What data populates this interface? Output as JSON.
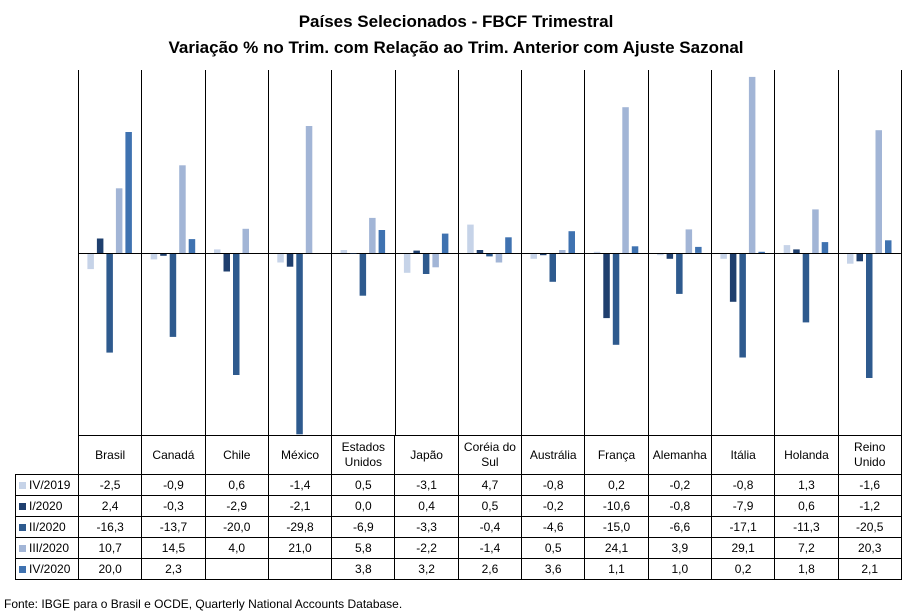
{
  "chart_data": {
    "type": "bar",
    "title": "Países Selecionados - FBCF Trimestral",
    "subtitle": "Variação % no Trim. com Relação ao Trim. Anterior com Ajuste Sazonal",
    "categories": [
      "Brasil",
      "Canadá",
      "Chile",
      "México",
      "Estados Unidos",
      "Japão",
      "Coréia do Sul",
      "Austrália",
      "França",
      "Alemanha",
      "Itália",
      "Holanda",
      "Reino Unido"
    ],
    "series": [
      {
        "name": "IV/2019",
        "color": "#c6d3e8",
        "values": [
          -2.5,
          -0.9,
          0.6,
          -1.4,
          0.5,
          -3.1,
          4.7,
          -0.8,
          0.2,
          -0.2,
          -0.8,
          1.3,
          -1.6
        ],
        "labels": [
          "-2,5",
          "-0,9",
          "0,6",
          "-1,4",
          "0,5",
          "-3,1",
          "4,7",
          "-0,8",
          "0,2",
          "-0,2",
          "-0,8",
          "1,3",
          "-1,6"
        ]
      },
      {
        "name": "I/2020",
        "color": "#1f3f6e",
        "values": [
          2.4,
          -0.3,
          -2.9,
          -2.1,
          0.0,
          0.4,
          0.5,
          -0.2,
          -10.6,
          -0.8,
          -7.9,
          0.6,
          -1.2
        ],
        "labels": [
          "2,4",
          "-0,3",
          "-2,9",
          "-2,1",
          "0,0",
          "0,4",
          "0,5",
          "-0,2",
          "-10,6",
          "-0,8",
          "-7,9",
          "0,6",
          "-1,2"
        ]
      },
      {
        "name": "II/2020",
        "color": "#2e5a8e",
        "values": [
          -16.3,
          -13.7,
          -20.0,
          -29.8,
          -6.9,
          -3.3,
          -0.4,
          -4.6,
          -15.0,
          -6.6,
          -17.1,
          -11.3,
          -20.5
        ],
        "labels": [
          "-16,3",
          "-13,7",
          "-20,0",
          "-29,8",
          "-6,9",
          "-3,3",
          "-0,4",
          "-4,6",
          "-15,0",
          "-6,6",
          "-17,1",
          "-11,3",
          "-20,5"
        ]
      },
      {
        "name": "III/2020",
        "color": "#a2b5d6",
        "values": [
          10.7,
          14.5,
          4.0,
          21.0,
          5.8,
          -2.2,
          -1.4,
          0.5,
          24.1,
          3.9,
          29.1,
          7.2,
          20.3
        ],
        "labels": [
          "10,7",
          "14,5",
          "4,0",
          "21,0",
          "5,8",
          "-2,2",
          "-1,4",
          "0,5",
          "24,1",
          "3,9",
          "29,1",
          "7,2",
          "20,3"
        ]
      },
      {
        "name": "IV/2020",
        "color": "#3f72b0",
        "values": [
          20.0,
          2.3,
          null,
          null,
          3.8,
          3.2,
          2.6,
          3.6,
          1.1,
          1.0,
          0.2,
          1.8,
          2.1
        ],
        "labels": [
          "20,0",
          "2,3",
          "",
          "",
          "3,8",
          "3,2",
          "2,6",
          "3,6",
          "1,1",
          "1,0",
          "0,2",
          "1,8",
          "2,1"
        ]
      }
    ],
    "ylim": [
      -30,
      30
    ],
    "grid": false,
    "legend": "data table below"
  },
  "header_labels": [
    [
      "Brasil"
    ],
    [
      "Canadá"
    ],
    [
      "Chile"
    ],
    [
      "México"
    ],
    [
      "Estados",
      "Unidos"
    ],
    [
      "Japão"
    ],
    [
      "Coréia do",
      "Sul"
    ],
    [
      "Austrália"
    ],
    [
      "França"
    ],
    [
      "Alemanha"
    ],
    [
      "Itália"
    ],
    [
      "Holanda"
    ],
    [
      "Reino",
      "Unido"
    ]
  ],
  "source": "Fonte: IBGE para o Brasil e OCDE, Quarterly National Accounts Database."
}
